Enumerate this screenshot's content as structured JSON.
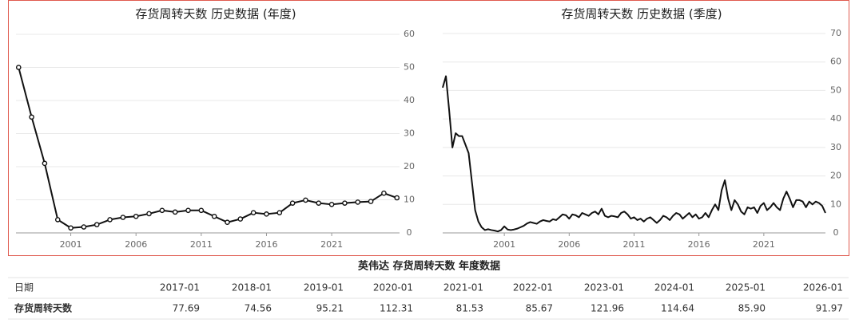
{
  "chart_data": [
    {
      "type": "line",
      "title": "存货周转天数 历史数据 (年度)",
      "markers": true,
      "color": "#111111",
      "grid": true,
      "x": [
        1997,
        1998,
        1999,
        2000,
        2001,
        2002,
        2003,
        2004,
        2005,
        2006,
        2007,
        2008,
        2009,
        2010,
        2011,
        2012,
        2013,
        2014,
        2015,
        2016,
        2017,
        2018,
        2019,
        2020,
        2021,
        2022,
        2023,
        2024,
        2025,
        2026
      ],
      "values": [
        50,
        35,
        21,
        4,
        1.5,
        1.8,
        2.5,
        4,
        4.7,
        5,
        5.8,
        6.8,
        6.3,
        6.8,
        6.8,
        5,
        3.2,
        4.2,
        6.1,
        5.7,
        6.1,
        9,
        9.9,
        9,
        8.6,
        9,
        9.3,
        9.5,
        12,
        10.6
      ],
      "xlim": [
        1996.8,
        2026.2
      ],
      "xticks": [
        2001,
        2006,
        2011,
        2016,
        2021
      ],
      "ylim": [
        0,
        60
      ],
      "yticks": [
        0,
        10,
        20,
        30,
        40,
        50,
        60
      ]
    },
    {
      "type": "line",
      "title": "存货周转天数 历史数据 (季度)",
      "markers": false,
      "color": "#111111",
      "grid": true,
      "x": [
        1996.25,
        1996.5,
        1996.75,
        1997,
        1997.25,
        1997.5,
        1997.75,
        1998,
        1998.25,
        1998.5,
        1998.75,
        1999,
        1999.25,
        1999.5,
        1999.75,
        2000,
        2000.25,
        2000.5,
        2000.75,
        2001,
        2001.25,
        2001.5,
        2001.75,
        2002,
        2002.25,
        2002.5,
        2002.75,
        2003,
        2003.25,
        2003.5,
        2003.75,
        2004,
        2004.25,
        2004.5,
        2004.75,
        2005,
        2005.25,
        2005.5,
        2005.75,
        2006,
        2006.25,
        2006.5,
        2006.75,
        2007,
        2007.25,
        2007.5,
        2007.75,
        2008,
        2008.25,
        2008.5,
        2008.75,
        2009,
        2009.25,
        2009.5,
        2009.75,
        2010,
        2010.25,
        2010.5,
        2010.75,
        2011,
        2011.25,
        2011.5,
        2011.75,
        2012,
        2012.25,
        2012.5,
        2012.75,
        2013,
        2013.25,
        2013.5,
        2013.75,
        2014,
        2014.25,
        2014.5,
        2014.75,
        2015,
        2015.25,
        2015.5,
        2015.75,
        2016,
        2016.25,
        2016.5,
        2016.75,
        2017,
        2017.25,
        2017.5,
        2017.75,
        2018,
        2018.25,
        2018.5,
        2018.75,
        2019,
        2019.25,
        2019.5,
        2019.75,
        2020,
        2020.25,
        2020.5,
        2020.75,
        2021,
        2021.25,
        2021.5,
        2021.75,
        2022,
        2022.25,
        2022.5,
        2022.75,
        2023,
        2023.25,
        2023.5,
        2023.75,
        2024,
        2024.25,
        2024.5,
        2024.75,
        2025,
        2025.25,
        2025.5,
        2025.75
      ],
      "values": [
        51,
        55,
        43,
        30,
        35,
        34,
        34,
        31,
        28,
        18,
        8,
        4,
        2,
        1,
        1.3,
        1,
        0.8,
        0.5,
        1,
        2.3,
        1.2,
        1,
        1.2,
        1.5,
        2,
        2.5,
        3.3,
        3.8,
        3.5,
        3.2,
        4,
        4.5,
        4.2,
        4,
        4.8,
        4.5,
        5.5,
        6.5,
        6.2,
        5,
        6.5,
        6.2,
        5.5,
        7,
        6.5,
        6,
        7,
        7.5,
        6.5,
        8.5,
        6,
        5.5,
        6,
        5.8,
        5.5,
        7,
        7.5,
        6.5,
        5,
        5.5,
        4.5,
        5,
        4,
        5,
        5.5,
        4.5,
        3.5,
        4.5,
        6,
        5.5,
        4.5,
        6,
        7,
        6.5,
        5,
        6,
        7,
        5.5,
        6.5,
        5,
        5.5,
        7,
        5.5,
        8,
        10,
        8,
        15,
        18.5,
        12,
        8,
        11.5,
        10,
        7.5,
        6.5,
        9,
        8.5,
        9,
        7,
        9.5,
        10.5,
        8,
        9,
        10.5,
        9,
        8,
        12,
        14.5,
        12,
        9,
        11.5,
        11.5,
        11,
        9,
        11,
        10,
        11,
        10.5,
        9.5,
        7
      ],
      "xlim": [
        1996.25,
        2025.75
      ],
      "xticks": [
        2001,
        2006,
        2011,
        2016,
        2021
      ],
      "ylim": [
        0,
        70
      ],
      "yticks": [
        0,
        10,
        20,
        30,
        40,
        50,
        60,
        70
      ]
    }
  ],
  "table": {
    "title": "英伟达 存货周转天数 年度数据",
    "header": [
      "日期",
      "2017-01",
      "2018-01",
      "2019-01",
      "2020-01",
      "2021-01",
      "2022-01",
      "2023-01",
      "2024-01",
      "2025-01",
      "2026-01"
    ],
    "rows": [
      [
        "存货周转天数",
        "77.69",
        "74.56",
        "95.21",
        "112.31",
        "81.53",
        "85.67",
        "121.96",
        "114.64",
        "85.90",
        "91.97"
      ]
    ]
  }
}
